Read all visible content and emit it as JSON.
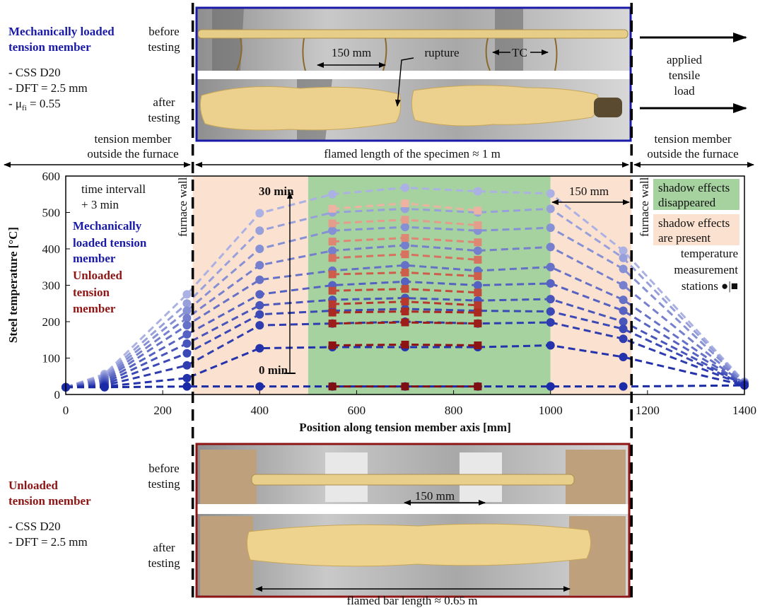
{
  "top_panel": {
    "title": [
      "Mechanically loaded",
      "tension member"
    ],
    "specs": [
      "- CSS D20",
      "- DFT = 2.5 mm"
    ],
    "mu": {
      "prefix": "- μ",
      "sub": "fi",
      "suffix": " = 0.55"
    },
    "before": [
      "before",
      "testing"
    ],
    "after": [
      "after",
      "testing"
    ],
    "dim": "150 mm",
    "rupture": "rupture",
    "tc": "TC",
    "load": [
      "applied",
      "tensile",
      "load"
    ]
  },
  "zones": {
    "left": [
      "tension member",
      "outside the furnace"
    ],
    "middle": "flamed length of the specimen ≈ 1 m",
    "right": [
      "tension member",
      "outside the furnace"
    ]
  },
  "chart_data": {
    "type": "line",
    "y_label": "Steel temperature [°C]",
    "x_label": "Position along tension member axis [mm]",
    "xlim": [
      0,
      1400
    ],
    "ylim": [
      0,
      600
    ],
    "xticks": [
      0,
      200,
      400,
      600,
      800,
      1000,
      1200,
      1400
    ],
    "yticks": [
      0,
      100,
      200,
      300,
      400,
      500,
      600
    ],
    "x": [
      0,
      80,
      250,
      400,
      550,
      700,
      850,
      1000,
      1150,
      1400
    ],
    "furnace_walls": [
      262,
      1167
    ],
    "regions": [
      {
        "x": [
          262,
          500
        ],
        "color": "#fbe1d0"
      },
      {
        "x": [
          500,
          1000
        ],
        "color": "#a6d2a0"
      },
      {
        "x": [
          1000,
          1167
        ],
        "color": "#fbe1d0"
      }
    ],
    "series": [
      {
        "group": "loaded",
        "color": "#1b2aa6",
        "values": [
          20,
          20,
          22,
          22,
          22,
          22,
          22,
          22,
          22,
          25
        ]
      },
      {
        "group": "loaded",
        "color": "#2433ab",
        "values": [
          20,
          22,
          45,
          127,
          130,
          130,
          130,
          135,
          103,
          25
        ]
      },
      {
        "group": "loaded",
        "color": "#2f3db0",
        "values": [
          20,
          25,
          80,
          190,
          195,
          200,
          195,
          198,
          153,
          26
        ]
      },
      {
        "group": "loaded",
        "color": "#3b49b6",
        "values": [
          20,
          28,
          113,
          220,
          230,
          235,
          230,
          228,
          180,
          27
        ]
      },
      {
        "group": "loaded",
        "color": "#4855bb",
        "values": [
          20,
          32,
          140,
          245,
          260,
          265,
          258,
          262,
          200,
          28
        ]
      },
      {
        "group": "loaded",
        "color": "#5662c1",
        "values": [
          20,
          36,
          165,
          275,
          300,
          310,
          300,
          305,
          230,
          29
        ]
      },
      {
        "group": "loaded",
        "color": "#6570c7",
        "values": [
          20,
          40,
          190,
          315,
          340,
          355,
          340,
          350,
          260,
          30
        ]
      },
      {
        "group": "loaded",
        "color": "#757fcd",
        "values": [
          20,
          44,
          210,
          355,
          395,
          410,
          395,
          405,
          300,
          31
        ]
      },
      {
        "group": "loaded",
        "color": "#8690d4",
        "values": [
          20,
          48,
          230,
          400,
          450,
          460,
          450,
          458,
          345,
          32
        ]
      },
      {
        "group": "loaded",
        "color": "#98a0db",
        "values": [
          20,
          52,
          250,
          450,
          500,
          510,
          500,
          510,
          375,
          33
        ]
      },
      {
        "group": "loaded",
        "color": "#abb1e3",
        "values": [
          20,
          56,
          275,
          498,
          550,
          568,
          558,
          552,
          395,
          35
        ]
      },
      {
        "group": "unloaded",
        "color": "#7e0f12",
        "values": [
          null,
          null,
          null,
          null,
          22,
          22,
          22,
          null,
          null,
          null
        ]
      },
      {
        "group": "unloaded",
        "color": "#8e1414",
        "values": [
          null,
          null,
          null,
          null,
          135,
          137,
          135,
          null,
          null,
          null
        ]
      },
      {
        "group": "unloaded",
        "color": "#9c1d1a",
        "values": [
          null,
          null,
          null,
          null,
          195,
          198,
          195,
          null,
          null,
          null
        ]
      },
      {
        "group": "unloaded",
        "color": "#aa2a22",
        "values": [
          null,
          null,
          null,
          null,
          225,
          228,
          225,
          null,
          null,
          null
        ]
      },
      {
        "group": "unloaded",
        "color": "#b7392d",
        "values": [
          null,
          null,
          null,
          null,
          248,
          255,
          245,
          null,
          null,
          null
        ]
      },
      {
        "group": "unloaded",
        "color": "#c34b3b",
        "values": [
          null,
          null,
          null,
          null,
          285,
          290,
          280,
          null,
          null,
          null
        ]
      },
      {
        "group": "unloaded",
        "color": "#cd5e4c",
        "values": [
          null,
          null,
          null,
          null,
          330,
          335,
          325,
          null,
          null,
          null
        ]
      },
      {
        "group": "unloaded",
        "color": "#d6725f",
        "values": [
          null,
          null,
          null,
          null,
          375,
          385,
          370,
          null,
          null,
          null
        ]
      },
      {
        "group": "unloaded",
        "color": "#de8774",
        "values": [
          null,
          null,
          null,
          null,
          420,
          430,
          418,
          null,
          null,
          null
        ]
      },
      {
        "group": "unloaded",
        "color": "#e59d8b",
        "values": [
          null,
          null,
          null,
          null,
          470,
          480,
          465,
          null,
          null,
          null
        ]
      },
      {
        "group": "unloaded",
        "color": "#ecb3a3",
        "values": [
          null,
          null,
          null,
          null,
          510,
          525,
          505,
          null,
          null,
          null
        ]
      }
    ],
    "annotations": {
      "interval": [
        "time intervall",
        "+ 3 min"
      ],
      "loaded": [
        "Mechanically",
        "loaded tension",
        "member"
      ],
      "unloaded": [
        "Unloaded",
        "tension",
        "member"
      ],
      "wall": "furnace wall",
      "t_end": "30 min",
      "t_start": "0 min",
      "dim": "150 mm",
      "stations": [
        "temperature",
        "measurement",
        "stations ●|■"
      ]
    },
    "shadow_legend": [
      {
        "lines": [
          "shadow effects",
          "disappeared"
        ],
        "color": "#a6d2a0"
      },
      {
        "lines": [
          "shadow effects",
          "are present"
        ],
        "color": "#fbe1d0"
      }
    ]
  },
  "bottom_panel": {
    "title": [
      "Unloaded",
      "tension member"
    ],
    "specs": [
      "- CSS D20",
      "- DFT = 2.5 mm"
    ],
    "before": [
      "before",
      "testing"
    ],
    "after": [
      "after",
      "testing"
    ],
    "dim": "150 mm",
    "length": "flamed bar length ≈ 0.65 m"
  }
}
